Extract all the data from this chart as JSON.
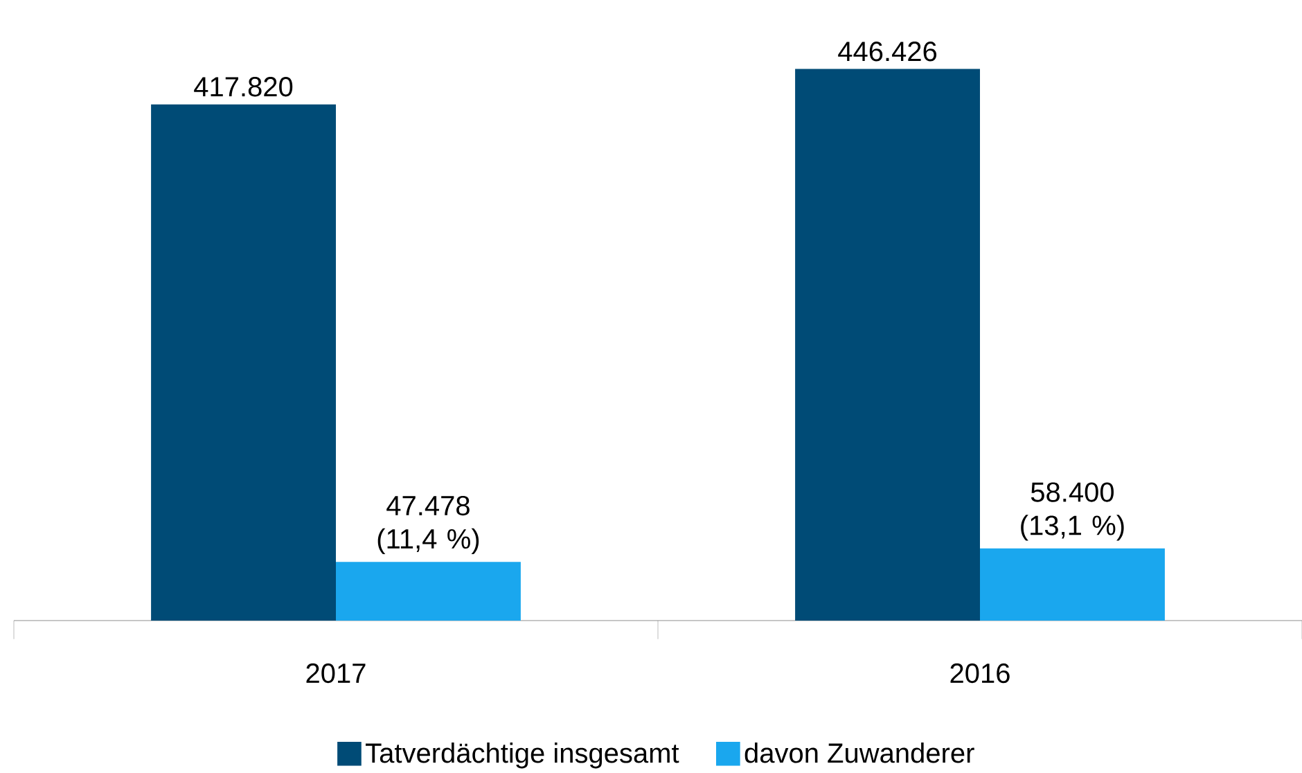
{
  "chart_data": {
    "type": "bar",
    "categories": [
      "2017",
      "2016"
    ],
    "series": [
      {
        "name": "Tatverdächtige insgesamt",
        "color": "#004b76",
        "values": [
          417820,
          446426
        ],
        "value_labels": [
          "417.820",
          "446.426"
        ]
      },
      {
        "name": "davon Zuwanderer",
        "color": "#1aa7ee",
        "values": [
          47478,
          58400
        ],
        "value_labels": [
          "47.478 (11,4 %)",
          "58.400 (13,1 %)"
        ]
      }
    ],
    "tick_labels": "x",
    "legend": "bottom"
  }
}
